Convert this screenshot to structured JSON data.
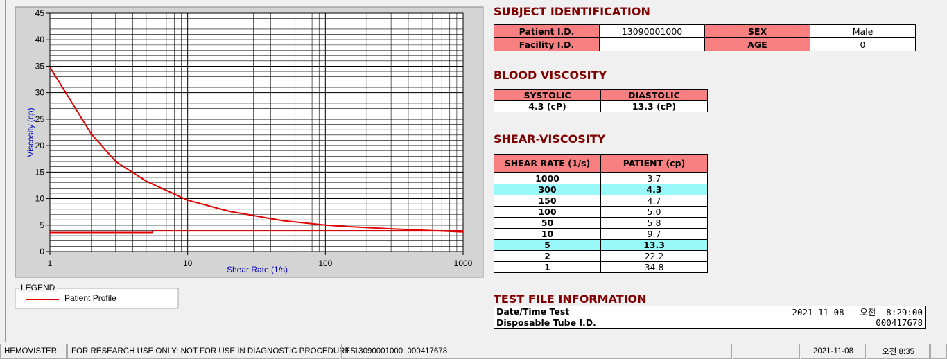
{
  "chart_data": {
    "type": "line",
    "xlabel": "Shear Rate (1/s)",
    "ylabel": "Viscosity (cp)",
    "xscale": "log",
    "xlim": [
      1,
      1000
    ],
    "xticks": [
      1,
      10,
      100,
      1000
    ],
    "ylim": [
      0,
      45
    ],
    "yticks": [
      0,
      5,
      10,
      15,
      20,
      25,
      30,
      35,
      40,
      45
    ],
    "grid": true,
    "legend_title": "LEGEND",
    "series": [
      {
        "name": "Patient Profile",
        "color": "#e00000",
        "x": [
          1,
          2,
          3,
          5,
          10,
          20,
          50,
          100,
          150,
          300,
          1000
        ],
        "values": [
          34.8,
          22.2,
          17.0,
          13.3,
          9.7,
          7.6,
          5.8,
          5.0,
          4.7,
          4.3,
          3.7
        ]
      },
      {
        "color": "#e00000",
        "x": [
          1,
          5.5,
          5.6,
          1000
        ],
        "values": [
          3.6,
          3.6,
          3.9,
          3.9
        ]
      }
    ]
  },
  "subject": {
    "title": "SUBJECT IDENTIFICATION",
    "patient_id_label": "Patient I.D.",
    "patient_id": "13090001000",
    "sex_label": "SEX",
    "sex": "Male",
    "facility_id_label": "Facility I.D.",
    "age_label": "AGE",
    "age": "0"
  },
  "blood_viscosity": {
    "title": "BLOOD VISCOSITY",
    "headers": [
      "SYSTOLIC",
      "DIASTOLIC"
    ],
    "values": [
      "4.3 (cP)",
      "13.3 (cP)"
    ]
  },
  "shear_viscosity": {
    "title": "SHEAR-VISCOSITY",
    "headers": [
      "SHEAR RATE (1/s)",
      "PATIENT (cp)"
    ],
    "highlight": [
      1,
      6
    ],
    "rows": [
      [
        "1000",
        "3.7"
      ],
      [
        "300",
        "4.3"
      ],
      [
        "150",
        "4.7"
      ],
      [
        "100",
        "5.0"
      ],
      [
        "50",
        "5.8"
      ],
      [
        "10",
        "9.7"
      ],
      [
        "5",
        "13.3"
      ],
      [
        "2",
        "22.2"
      ],
      [
        "1",
        "34.8"
      ]
    ]
  },
  "test_file": {
    "title": "TEST FILE INFORMATION",
    "rows": [
      [
        "Date/Time Test",
        "2021-11-08   오전  8:29:00"
      ],
      [
        "Disposable Tube I.D.",
        "000417678"
      ]
    ]
  },
  "status_bar": [
    "HEMOVISTER",
    "FOR RESEARCH USE ONLY: NOT FOR USE IN DIAGNOSTIC PROCEDURES",
    "1  13090001000  000417678",
    "2021-11-08",
    "오전 8:35"
  ]
}
